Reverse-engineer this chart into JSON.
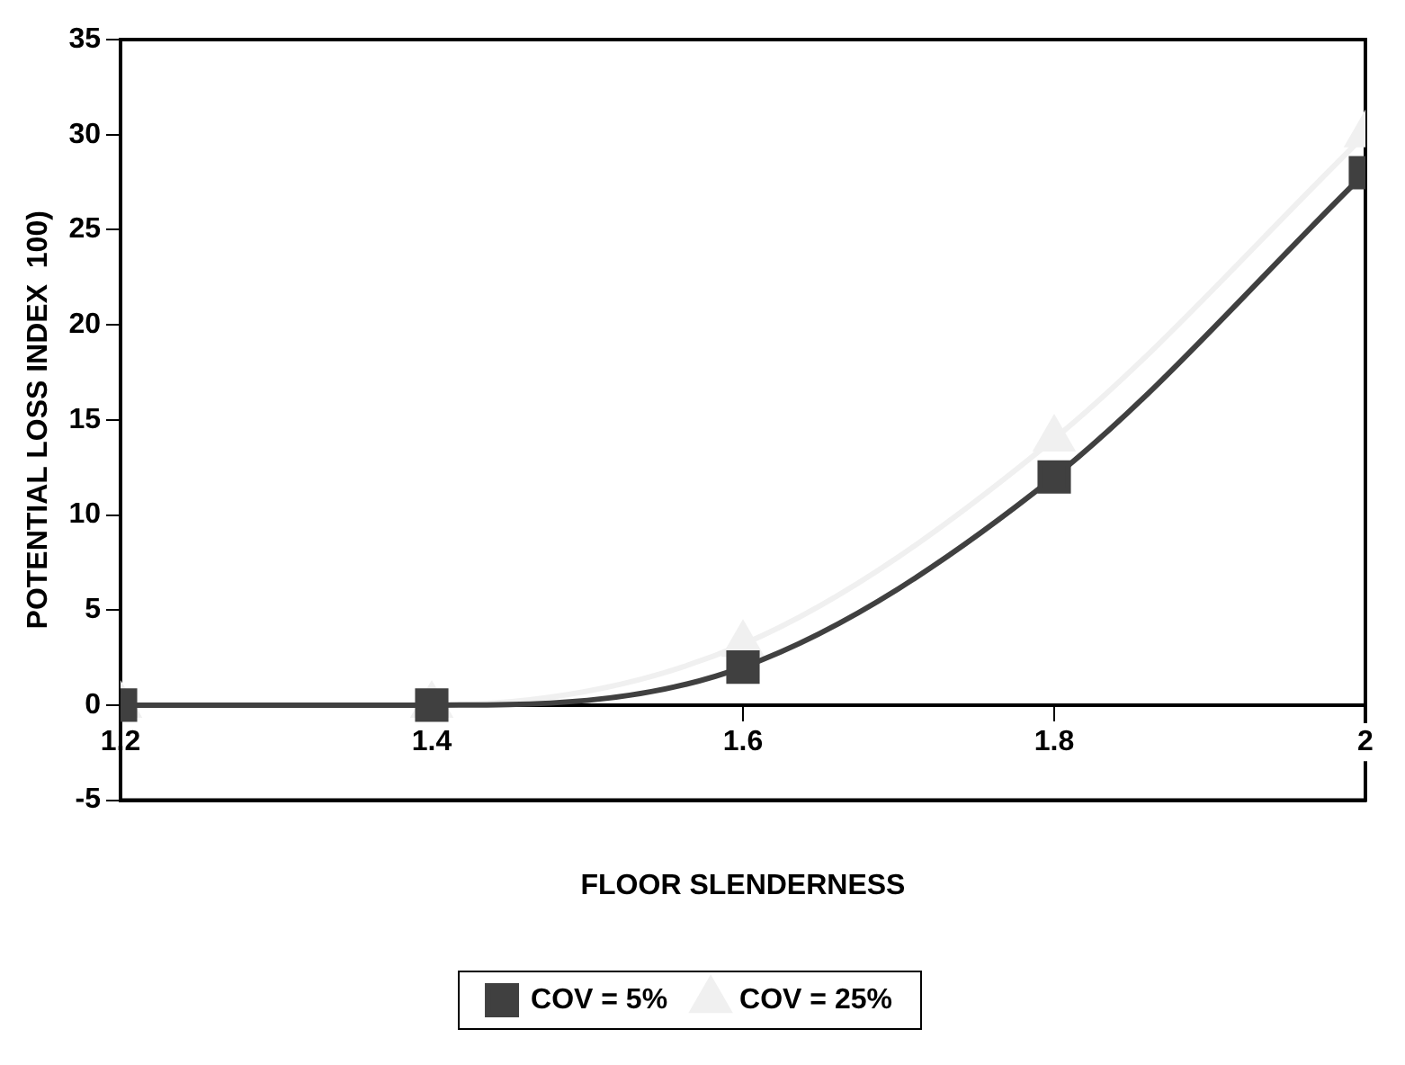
{
  "chart_data": {
    "type": "line",
    "xlabel": "FLOOR SLENDERNESS",
    "ylabel": "POTENTIAL LOSS INDEX  100)",
    "x": [
      1.2,
      1.4,
      1.6,
      1.8,
      2
    ],
    "series": [
      {
        "name": "COV = 5%",
        "color": "#404040",
        "values": [
          0,
          0,
          2,
          12,
          28
        ],
        "marker": "square"
      },
      {
        "name": "COV = 25%",
        "color": "#f0f0f0",
        "values": [
          0,
          0,
          3.2,
          14,
          30
        ],
        "marker": "triangle"
      }
    ],
    "xlim": [
      1.2,
      2
    ],
    "xticks": [
      1.2,
      1.4,
      1.6,
      1.8,
      2
    ],
    "ylim": [
      -5,
      35
    ],
    "yticks": [
      -5,
      0,
      5,
      10,
      15,
      20,
      25,
      30,
      35
    ],
    "grid": false,
    "legend": "bottom"
  }
}
